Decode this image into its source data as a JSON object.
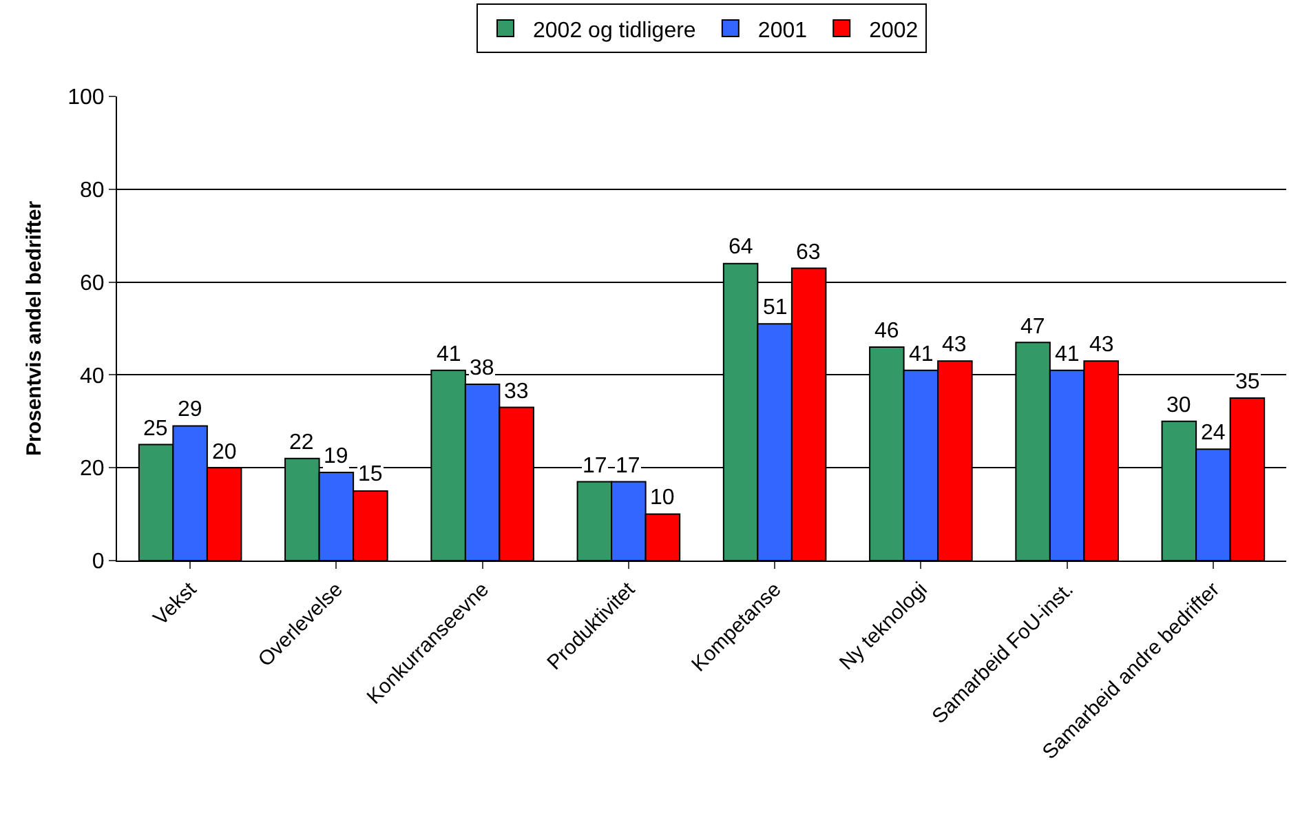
{
  "chart_data": {
    "type": "bar",
    "ylabel": "Prosentvis andel bedrifter",
    "categories": [
      "Vekst",
      "Overlevelse",
      "Konkurranseevne",
      "Produktivitet",
      "Kompetanse",
      "Ny teknologi",
      "Samarbeid FoU-inst.",
      "Samarbeid andre bedrifter"
    ],
    "series": [
      {
        "name": "2002 og tidligere",
        "color": "#339966",
        "values": [
          25,
          22,
          41,
          17,
          64,
          46,
          47,
          30
        ]
      },
      {
        "name": "2001",
        "color": "#3366ff",
        "values": [
          29,
          19,
          38,
          17,
          51,
          41,
          41,
          24
        ]
      },
      {
        "name": "2002",
        "color": "#ff0000",
        "values": [
          20,
          15,
          33,
          10,
          63,
          43,
          43,
          35
        ]
      }
    ],
    "ylim": [
      0,
      100
    ],
    "yticks": [
      0,
      20,
      40,
      60,
      80,
      100
    ],
    "grid": "y",
    "legend": "top",
    "data_labels": true
  }
}
